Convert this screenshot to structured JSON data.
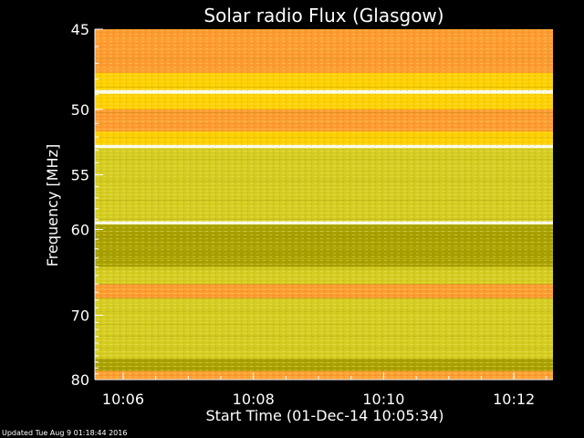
{
  "chart_data": {
    "type": "heatmap",
    "title": "Solar radio Flux (Glasgow)",
    "xlabel": "Start Time (01-Dec-14 10:05:34)",
    "ylabel": "Frequency [MHz]",
    "x_ticks": [
      "10:06",
      "10:08",
      "10:10",
      "10:12"
    ],
    "x_tick_minutes": [
      6,
      8,
      10,
      12
    ],
    "x_range_minutes": [
      5.566,
      12.6
    ],
    "y_ticks": [
      45,
      50,
      55,
      60,
      70,
      80
    ],
    "y_range": [
      45,
      80
    ],
    "y_scale": "reciprocal",
    "colors": {
      "background": "#000000",
      "low": "#a8a000",
      "mid": "#d4cc20",
      "high": "#ffd000",
      "peak": "#ff9a30",
      "white": "#fffff0"
    },
    "bands": [
      {
        "from": 45.0,
        "to": 47.6,
        "level": "peak"
      },
      {
        "from": 47.6,
        "to": 48.7,
        "level": "high"
      },
      {
        "from": 48.7,
        "to": 48.95,
        "level": "white"
      },
      {
        "from": 48.95,
        "to": 50.0,
        "level": "high"
      },
      {
        "from": 50.0,
        "to": 51.6,
        "level": "peak"
      },
      {
        "from": 51.6,
        "to": 52.6,
        "level": "high"
      },
      {
        "from": 52.6,
        "to": 52.85,
        "level": "white"
      },
      {
        "from": 52.85,
        "to": 59.2,
        "level": "mid"
      },
      {
        "from": 59.2,
        "to": 59.5,
        "level": "white"
      },
      {
        "from": 59.5,
        "to": 64.0,
        "level": "low"
      },
      {
        "from": 64.0,
        "to": 66.0,
        "level": "mid"
      },
      {
        "from": 66.0,
        "to": 67.8,
        "level": "peak"
      },
      {
        "from": 67.8,
        "to": 76.5,
        "level": "mid"
      },
      {
        "from": 76.5,
        "to": 78.5,
        "level": "low"
      },
      {
        "from": 78.5,
        "to": 80.0,
        "level": "peak"
      }
    ]
  },
  "footer": {
    "updated": "Updated Tue Aug  9 01:18:44 2016"
  }
}
